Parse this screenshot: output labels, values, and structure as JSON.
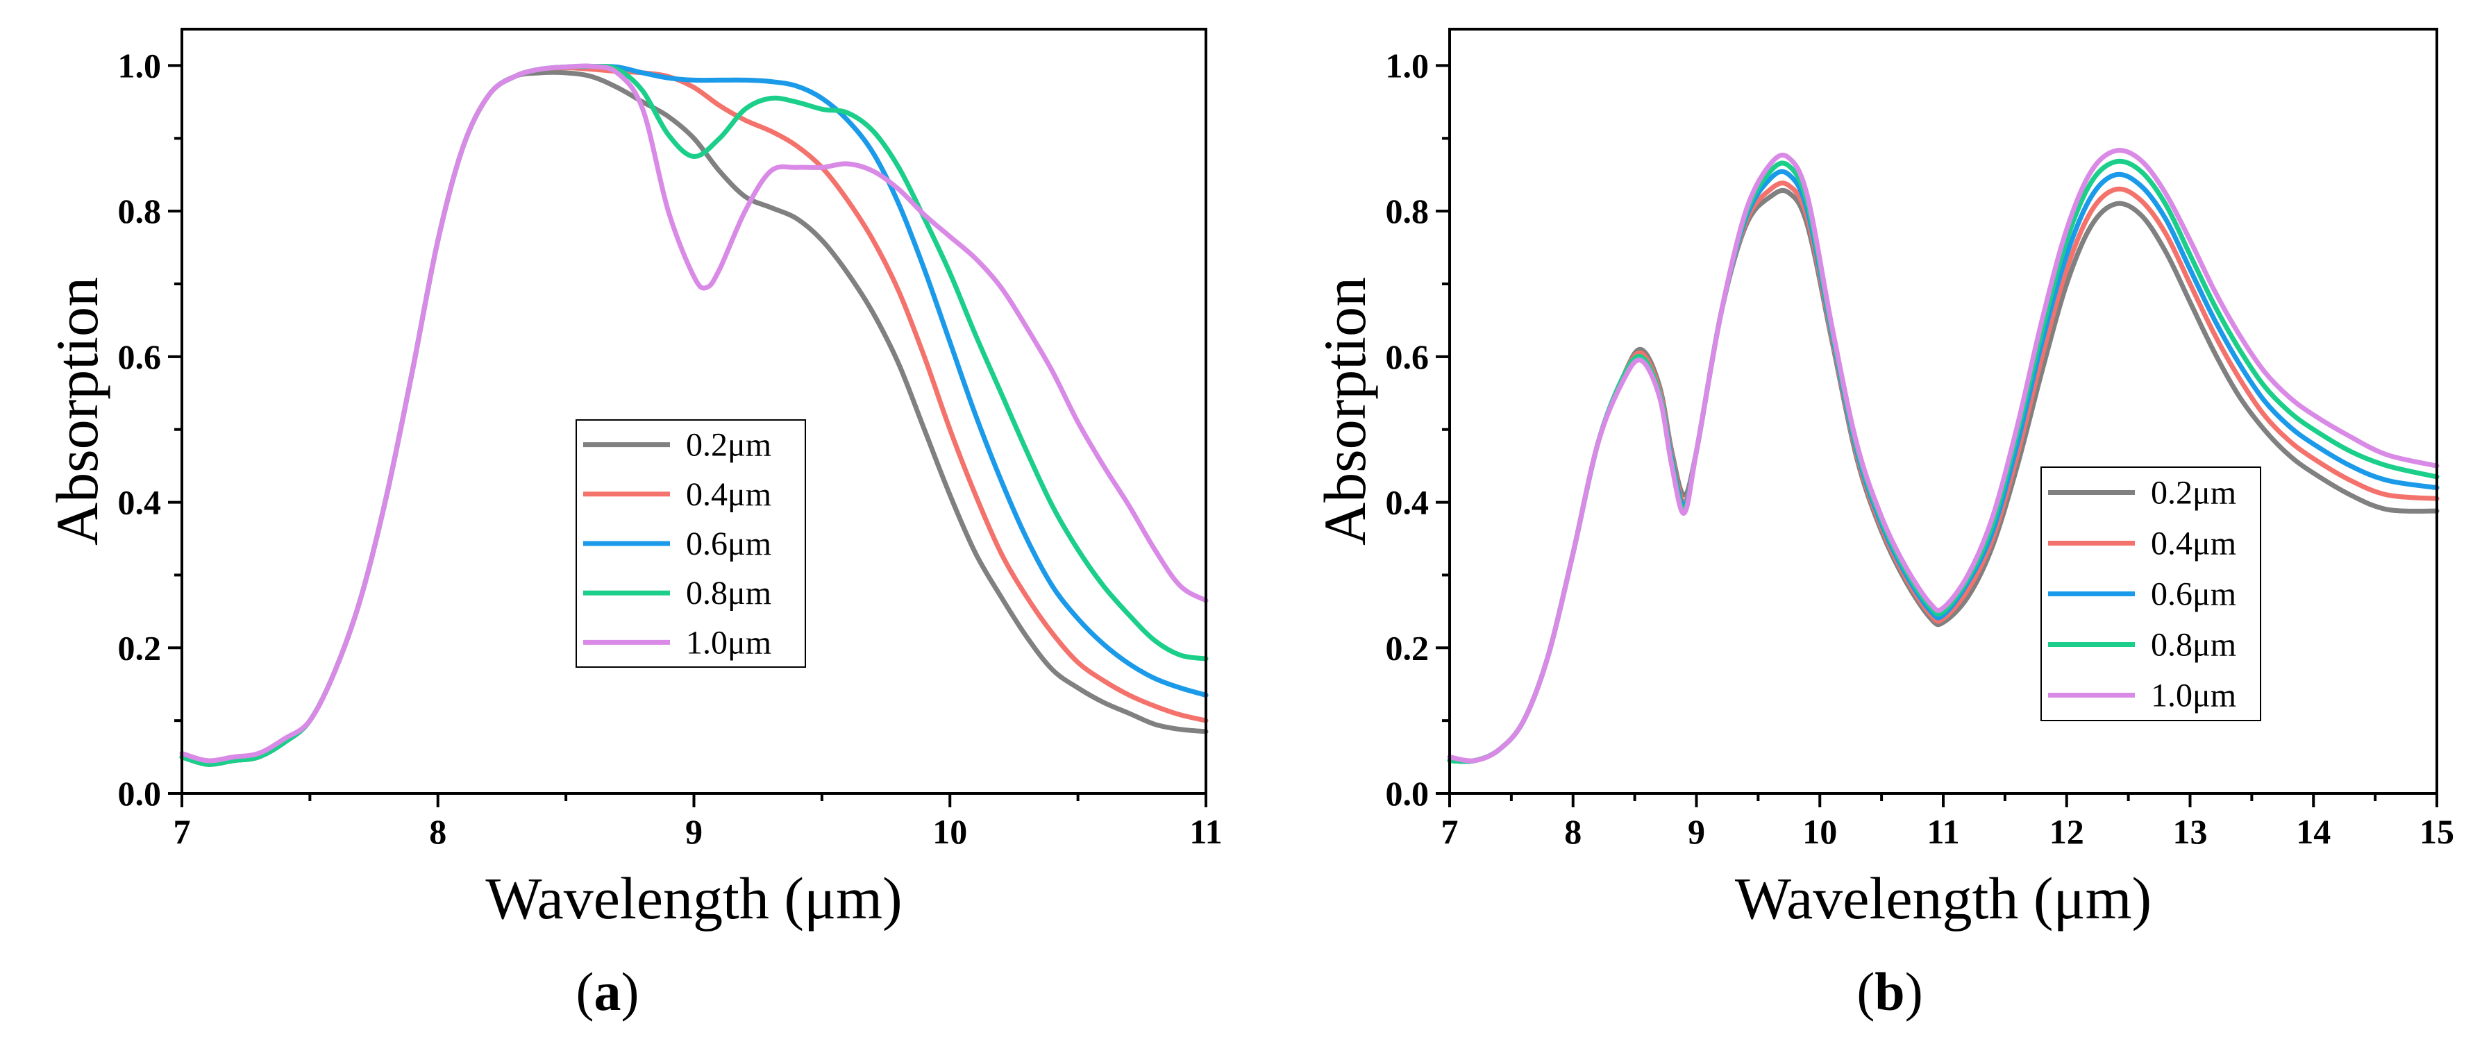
{
  "colors": {
    "series": [
      "#808080",
      "#f4726c",
      "#1a9ae8",
      "#1bcf8a",
      "#d98ae6"
    ]
  },
  "chart_data": [
    {
      "type": "line",
      "caption": {
        "open": "(",
        "letter": "a",
        "close": ")"
      },
      "xlabel": "Wavelength (μm)",
      "ylabel": "Absorption",
      "xlim": [
        7,
        11
      ],
      "ylim": [
        0,
        1.05
      ],
      "xticks": [
        7,
        8,
        9,
        10,
        11
      ],
      "yticks": [
        0.0,
        0.2,
        0.4,
        0.6,
        0.8,
        1.0
      ],
      "tick_labels_x": [
        "7",
        "8",
        "9",
        "10",
        "11"
      ],
      "tick_labels_y": [
        "0.0",
        "0.2",
        "0.4",
        "0.6",
        "0.8",
        "1.0"
      ],
      "legend_position": "center",
      "grid": false,
      "series": [
        {
          "name": "0.2μm",
          "x": [
            7,
            7.1,
            7.2,
            7.3,
            7.4,
            7.5,
            7.6,
            7.7,
            7.8,
            7.9,
            8.0,
            8.1,
            8.2,
            8.3,
            8.4,
            8.5,
            8.6,
            8.7,
            8.8,
            8.9,
            9.0,
            9.1,
            9.2,
            9.3,
            9.4,
            9.5,
            9.6,
            9.7,
            9.8,
            9.9,
            10.0,
            10.1,
            10.2,
            10.3,
            10.4,
            10.5,
            10.6,
            10.7,
            10.8,
            10.9,
            11.0
          ],
          "y": [
            0.05,
            0.04,
            0.045,
            0.05,
            0.07,
            0.1,
            0.17,
            0.27,
            0.41,
            0.58,
            0.76,
            0.89,
            0.96,
            0.985,
            0.99,
            0.99,
            0.985,
            0.97,
            0.95,
            0.93,
            0.9,
            0.855,
            0.82,
            0.805,
            0.79,
            0.76,
            0.715,
            0.66,
            0.59,
            0.5,
            0.41,
            0.33,
            0.27,
            0.215,
            0.17,
            0.145,
            0.125,
            0.11,
            0.095,
            0.088,
            0.085
          ]
        },
        {
          "name": "0.4μm",
          "x": [
            7,
            7.1,
            7.2,
            7.3,
            7.4,
            7.5,
            7.6,
            7.7,
            7.8,
            7.9,
            8.0,
            8.1,
            8.2,
            8.3,
            8.4,
            8.5,
            8.6,
            8.7,
            8.8,
            8.9,
            9.0,
            9.1,
            9.2,
            9.3,
            9.4,
            9.5,
            9.6,
            9.7,
            9.8,
            9.9,
            10.0,
            10.1,
            10.2,
            10.3,
            10.4,
            10.5,
            10.6,
            10.7,
            10.8,
            10.9,
            11.0
          ],
          "y": [
            0.05,
            0.04,
            0.045,
            0.05,
            0.07,
            0.1,
            0.17,
            0.27,
            0.41,
            0.58,
            0.76,
            0.89,
            0.96,
            0.985,
            0.995,
            0.997,
            0.995,
            0.992,
            0.99,
            0.985,
            0.97,
            0.945,
            0.925,
            0.91,
            0.89,
            0.86,
            0.815,
            0.76,
            0.69,
            0.6,
            0.5,
            0.41,
            0.33,
            0.27,
            0.22,
            0.18,
            0.155,
            0.135,
            0.12,
            0.108,
            0.1
          ]
        },
        {
          "name": "0.6μm",
          "x": [
            7,
            7.1,
            7.2,
            7.3,
            7.4,
            7.5,
            7.6,
            7.7,
            7.8,
            7.9,
            8.0,
            8.1,
            8.2,
            8.3,
            8.4,
            8.5,
            8.6,
            8.7,
            8.8,
            8.9,
            9.0,
            9.1,
            9.2,
            9.3,
            9.4,
            9.5,
            9.6,
            9.7,
            9.8,
            9.9,
            10.0,
            10.1,
            10.2,
            10.3,
            10.4,
            10.5,
            10.6,
            10.7,
            10.8,
            10.9,
            11.0
          ],
          "y": [
            0.05,
            0.04,
            0.045,
            0.05,
            0.07,
            0.1,
            0.17,
            0.27,
            0.41,
            0.58,
            0.76,
            0.89,
            0.96,
            0.985,
            0.995,
            0.998,
            0.999,
            0.998,
            0.99,
            0.983,
            0.98,
            0.98,
            0.98,
            0.978,
            0.972,
            0.955,
            0.925,
            0.88,
            0.81,
            0.72,
            0.62,
            0.52,
            0.43,
            0.35,
            0.285,
            0.24,
            0.205,
            0.178,
            0.158,
            0.145,
            0.135
          ]
        },
        {
          "name": "0.8μm",
          "x": [
            7,
            7.1,
            7.2,
            7.3,
            7.4,
            7.5,
            7.6,
            7.7,
            7.8,
            7.9,
            8.0,
            8.1,
            8.2,
            8.3,
            8.4,
            8.5,
            8.6,
            8.7,
            8.8,
            8.9,
            9.0,
            9.1,
            9.2,
            9.3,
            9.4,
            9.5,
            9.6,
            9.7,
            9.8,
            9.9,
            10.0,
            10.1,
            10.2,
            10.3,
            10.4,
            10.5,
            10.6,
            10.7,
            10.8,
            10.9,
            11.0
          ],
          "y": [
            0.05,
            0.04,
            0.045,
            0.05,
            0.07,
            0.1,
            0.17,
            0.27,
            0.41,
            0.58,
            0.76,
            0.89,
            0.96,
            0.985,
            0.995,
            0.998,
            0.999,
            0.995,
            0.965,
            0.905,
            0.875,
            0.9,
            0.94,
            0.955,
            0.95,
            0.94,
            0.935,
            0.91,
            0.86,
            0.79,
            0.715,
            0.63,
            0.55,
            0.47,
            0.395,
            0.335,
            0.285,
            0.245,
            0.21,
            0.19,
            0.185
          ]
        },
        {
          "name": "1.0μm",
          "x": [
            7,
            7.1,
            7.2,
            7.3,
            7.4,
            7.5,
            7.6,
            7.7,
            7.8,
            7.9,
            8.0,
            8.1,
            8.2,
            8.3,
            8.4,
            8.5,
            8.6,
            8.7,
            8.8,
            8.9,
            9.0,
            9.05,
            9.1,
            9.2,
            9.3,
            9.4,
            9.5,
            9.6,
            9.7,
            9.8,
            9.9,
            10.0,
            10.1,
            10.2,
            10.3,
            10.4,
            10.5,
            10.6,
            10.7,
            10.8,
            10.9,
            11.0
          ],
          "y": [
            0.055,
            0.045,
            0.05,
            0.055,
            0.075,
            0.1,
            0.17,
            0.27,
            0.41,
            0.58,
            0.76,
            0.89,
            0.96,
            0.985,
            0.995,
            0.998,
            0.999,
            0.99,
            0.94,
            0.8,
            0.71,
            0.695,
            0.72,
            0.8,
            0.855,
            0.86,
            0.86,
            0.865,
            0.855,
            0.83,
            0.795,
            0.765,
            0.735,
            0.695,
            0.64,
            0.58,
            0.51,
            0.45,
            0.395,
            0.335,
            0.285,
            0.265
          ]
        }
      ]
    },
    {
      "type": "line",
      "caption": {
        "open": "(",
        "letter": "b",
        "close": ")"
      },
      "xlabel": "Wavelength (μm)",
      "ylabel": "Absorption",
      "xlim": [
        7,
        15
      ],
      "ylim": [
        0,
        1.05
      ],
      "xticks": [
        7,
        8,
        9,
        10,
        11,
        12,
        13,
        14,
        15
      ],
      "yticks": [
        0.0,
        0.2,
        0.4,
        0.6,
        0.8,
        1.0
      ],
      "tick_labels_x": [
        "7",
        "8",
        "9",
        "10",
        "11",
        "12",
        "13",
        "14",
        "15"
      ],
      "tick_labels_y": [
        "0.0",
        "0.2",
        "0.4",
        "0.6",
        "0.8",
        "1.0"
      ],
      "legend_position": "lower-right",
      "grid": false,
      "series": [
        {
          "name": "0.2μm",
          "x": [
            7,
            7.2,
            7.4,
            7.6,
            7.8,
            8.0,
            8.2,
            8.4,
            8.55,
            8.7,
            8.8,
            8.9,
            9.0,
            9.2,
            9.4,
            9.6,
            9.75,
            9.9,
            10.1,
            10.3,
            10.5,
            10.7,
            10.9,
            11.0,
            11.2,
            11.4,
            11.6,
            11.8,
            12.0,
            12.2,
            12.4,
            12.6,
            12.8,
            13.0,
            13.2,
            13.4,
            13.6,
            13.8,
            14.0,
            14.3,
            14.6,
            15.0
          ],
          "y": [
            0.045,
            0.045,
            0.06,
            0.1,
            0.19,
            0.33,
            0.48,
            0.57,
            0.61,
            0.56,
            0.47,
            0.41,
            0.47,
            0.66,
            0.78,
            0.82,
            0.825,
            0.78,
            0.62,
            0.46,
            0.36,
            0.29,
            0.24,
            0.235,
            0.27,
            0.34,
            0.45,
            0.58,
            0.7,
            0.78,
            0.81,
            0.795,
            0.745,
            0.675,
            0.605,
            0.545,
            0.5,
            0.465,
            0.44,
            0.41,
            0.39,
            0.388
          ]
        },
        {
          "name": "0.4μm",
          "x": [
            7,
            7.2,
            7.4,
            7.6,
            7.8,
            8.0,
            8.2,
            8.4,
            8.55,
            8.7,
            8.8,
            8.9,
            9.0,
            9.2,
            9.4,
            9.6,
            9.75,
            9.9,
            10.1,
            10.3,
            10.5,
            10.7,
            10.9,
            11.0,
            11.2,
            11.4,
            11.6,
            11.8,
            12.0,
            12.2,
            12.4,
            12.6,
            12.8,
            13.0,
            13.2,
            13.4,
            13.6,
            13.8,
            14.0,
            14.3,
            14.6,
            15.0
          ],
          "y": [
            0.045,
            0.045,
            0.06,
            0.1,
            0.19,
            0.33,
            0.48,
            0.57,
            0.605,
            0.555,
            0.465,
            0.4,
            0.47,
            0.66,
            0.785,
            0.83,
            0.835,
            0.79,
            0.625,
            0.465,
            0.365,
            0.295,
            0.245,
            0.24,
            0.28,
            0.35,
            0.465,
            0.6,
            0.72,
            0.8,
            0.83,
            0.815,
            0.77,
            0.7,
            0.63,
            0.57,
            0.52,
            0.485,
            0.46,
            0.43,
            0.41,
            0.405
          ]
        },
        {
          "name": "0.6μm",
          "x": [
            7,
            7.2,
            7.4,
            7.6,
            7.8,
            8.0,
            8.2,
            8.4,
            8.55,
            8.7,
            8.8,
            8.9,
            9.0,
            9.2,
            9.4,
            9.6,
            9.75,
            9.9,
            10.1,
            10.3,
            10.5,
            10.7,
            10.9,
            11.0,
            11.2,
            11.4,
            11.6,
            11.8,
            12.0,
            12.2,
            12.4,
            12.6,
            12.8,
            13.0,
            13.2,
            13.4,
            13.6,
            13.8,
            14.0,
            14.3,
            14.6,
            15.0
          ],
          "y": [
            0.045,
            0.045,
            0.06,
            0.1,
            0.19,
            0.33,
            0.48,
            0.57,
            0.6,
            0.55,
            0.46,
            0.395,
            0.47,
            0.66,
            0.79,
            0.845,
            0.85,
            0.8,
            0.63,
            0.47,
            0.37,
            0.3,
            0.25,
            0.245,
            0.29,
            0.36,
            0.48,
            0.62,
            0.74,
            0.82,
            0.85,
            0.835,
            0.79,
            0.72,
            0.65,
            0.59,
            0.54,
            0.505,
            0.48,
            0.45,
            0.43,
            0.42
          ]
        },
        {
          "name": "0.8μm",
          "x": [
            7,
            7.2,
            7.4,
            7.6,
            7.8,
            8.0,
            8.2,
            8.4,
            8.55,
            8.7,
            8.8,
            8.9,
            9.0,
            9.2,
            9.4,
            9.6,
            9.75,
            9.9,
            10.1,
            10.3,
            10.5,
            10.7,
            10.9,
            11.0,
            11.2,
            11.4,
            11.6,
            11.8,
            12.0,
            12.2,
            12.4,
            12.6,
            12.8,
            13.0,
            13.2,
            13.4,
            13.6,
            13.8,
            14.0,
            14.3,
            14.6,
            15.0
          ],
          "y": [
            0.045,
            0.045,
            0.06,
            0.1,
            0.19,
            0.33,
            0.48,
            0.57,
            0.6,
            0.55,
            0.455,
            0.39,
            0.47,
            0.66,
            0.795,
            0.855,
            0.862,
            0.81,
            0.635,
            0.475,
            0.375,
            0.305,
            0.255,
            0.25,
            0.295,
            0.37,
            0.495,
            0.635,
            0.76,
            0.84,
            0.868,
            0.855,
            0.81,
            0.74,
            0.67,
            0.61,
            0.56,
            0.525,
            0.5,
            0.47,
            0.45,
            0.435
          ]
        },
        {
          "name": "1.0μm",
          "x": [
            7,
            7.2,
            7.4,
            7.6,
            7.8,
            8.0,
            8.2,
            8.4,
            8.55,
            8.7,
            8.8,
            8.9,
            9.0,
            9.2,
            9.4,
            9.6,
            9.75,
            9.9,
            10.1,
            10.3,
            10.5,
            10.7,
            10.9,
            11.0,
            11.2,
            11.4,
            11.6,
            11.8,
            12.0,
            12.2,
            12.4,
            12.6,
            12.8,
            13.0,
            13.2,
            13.4,
            13.6,
            13.8,
            14.0,
            14.3,
            14.6,
            15.0
          ],
          "y": [
            0.05,
            0.045,
            0.06,
            0.1,
            0.19,
            0.33,
            0.48,
            0.565,
            0.595,
            0.545,
            0.45,
            0.385,
            0.47,
            0.66,
            0.8,
            0.865,
            0.873,
            0.82,
            0.64,
            0.48,
            0.38,
            0.31,
            0.26,
            0.255,
            0.3,
            0.38,
            0.505,
            0.65,
            0.775,
            0.855,
            0.883,
            0.87,
            0.825,
            0.76,
            0.69,
            0.63,
            0.58,
            0.545,
            0.52,
            0.49,
            0.465,
            0.45
          ]
        }
      ]
    }
  ]
}
